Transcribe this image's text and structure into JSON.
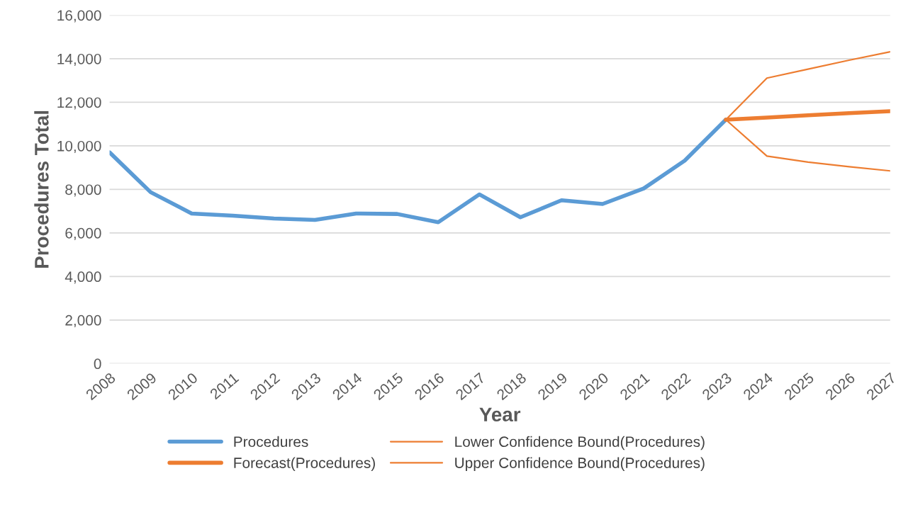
{
  "chart_data": {
    "type": "line",
    "xlabel": "Year",
    "ylabel": "Procedures Total",
    "categories": [
      "2008",
      "2009",
      "2010",
      "2011",
      "2012",
      "2013",
      "2014",
      "2015",
      "2016",
      "2017",
      "2018",
      "2019",
      "2020",
      "2021",
      "2022",
      "2023",
      "2024",
      "2025",
      "2026",
      "2027"
    ],
    "series": [
      {
        "name": "Procedures",
        "color": "#5b9bd5",
        "values": [
          9700,
          7870,
          6890,
          6790,
          6660,
          6600,
          6890,
          6870,
          6490,
          7770,
          6720,
          7500,
          7330,
          8040,
          9320,
          11200,
          null,
          null,
          null,
          null
        ]
      },
      {
        "name": "Forecast(Procedures)",
        "color": "#ed7d31",
        "values": [
          null,
          null,
          null,
          null,
          null,
          null,
          null,
          null,
          null,
          null,
          null,
          null,
          null,
          null,
          null,
          11200,
          11300,
          11400,
          11500,
          11590
        ]
      },
      {
        "name": "Lower Confidence Bound(Procedures)",
        "color": "#ed7d31",
        "values": [
          null,
          null,
          null,
          null,
          null,
          null,
          null,
          null,
          null,
          null,
          null,
          null,
          null,
          null,
          null,
          11200,
          9530,
          9250,
          9040,
          8850
        ]
      },
      {
        "name": "Upper Confidence Bound(Procedures)",
        "color": "#ed7d31",
        "values": [
          null,
          null,
          null,
          null,
          null,
          null,
          null,
          null,
          null,
          null,
          null,
          null,
          null,
          null,
          null,
          11200,
          13110,
          13520,
          13930,
          14320
        ]
      }
    ],
    "ylim": [
      0,
      16000
    ],
    "yticks": [
      {
        "value": 0,
        "label": "0"
      },
      {
        "value": 2000,
        "label": "2,000"
      },
      {
        "value": 4000,
        "label": "4,000"
      },
      {
        "value": 6000,
        "label": "6,000"
      },
      {
        "value": 8000,
        "label": "8,000"
      },
      {
        "value": 10000,
        "label": "10,000"
      },
      {
        "value": 12000,
        "label": "12,000"
      },
      {
        "value": 14000,
        "label": "14,000"
      },
      {
        "value": 16000,
        "label": "16,000"
      }
    ],
    "grid": "y",
    "legend": "bottom",
    "marker": "none",
    "line_style": "solid"
  }
}
